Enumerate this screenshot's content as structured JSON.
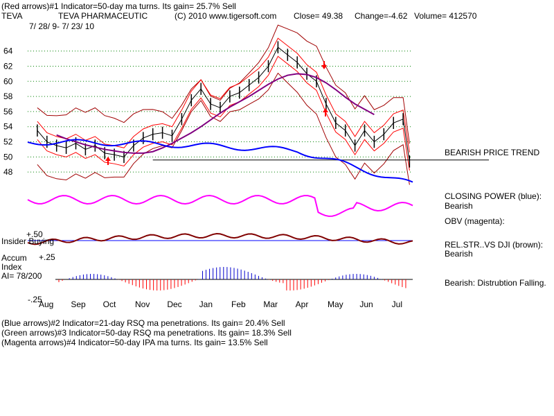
{
  "header": {
    "line1": "(Red arrows)#1 Indicator=50-day ma turns. Its gain= 25.7% Sell",
    "ticker": "TEVA",
    "company": "TEVA PHARMACEUTIC",
    "copyright": "(C) 2010 www.tigersoft.com",
    "close": "Close=  49.38",
    "change": "Change=-4.62",
    "volume": "Volume= 412570",
    "dates": "7/ 28/ 9- 7/ 23/ 10"
  },
  "right_labels": {
    "trend": "BEARISH PRICE TREND",
    "closing_power": "CLOSING POWER (blue):",
    "closing_power_val": "Bearish",
    "obv": "OBV (magenta):",
    "relstr": "REL.STR..VS DJI (brown):",
    "relstr_val": "Bearish",
    "accum": "Bearish: Distrubtion Falling."
  },
  "left_labels": {
    "insider": "Insider Buying",
    "accum": "Accum",
    "index": "Index",
    "ai": "AI= 78/200",
    "plus50": "+.50",
    "plus25": "+.25",
    "minus25": "-.25"
  },
  "footer": {
    "line1": "(Blue arrows)#2 Indicator=21-day RSQ ma penetrations. Its gain= 20.4% Sell",
    "line2": "(Green arrows)#3 Indicator=50-day RSQ ma penetrations. Its gain= 18.3% Sell",
    "line3": "(Magenta arrows)#4 Indicator=50-day IPA ma turns. Its gain= 13.5% Sell"
  },
  "colors": {
    "price": "#000000",
    "ma50": "#800080",
    "band": "#ff0000",
    "band_dark": "#a00000",
    "closing_power": "#0000ff",
    "obv": "#ff00ff",
    "relstr": "#800000",
    "accum_pos": "#0000cc",
    "accum_neg": "#ff0000",
    "grid": "#008000"
  },
  "chart_data": {
    "type": "line",
    "ylim": [
      46,
      68
    ],
    "yticks": [
      48,
      50,
      52,
      54,
      56,
      58,
      60,
      62,
      64
    ],
    "months": [
      "Aug",
      "Sep",
      "Oct",
      "Nov",
      "Dec",
      "Jan",
      "Feb",
      "Mar",
      "Apr",
      "May",
      "Jun",
      "Jul"
    ],
    "price_x": [
      0,
      0.3,
      0.6,
      0.9,
      1.2,
      1.5,
      1.8,
      2.1,
      2.4,
      2.7,
      3.0,
      3.3,
      3.6,
      3.9,
      4.2,
      4.5,
      4.8,
      5.1,
      5.4,
      5.7,
      6.0,
      6.3,
      6.6,
      6.9,
      7.2,
      7.5,
      7.8,
      8.1,
      8.4,
      8.7,
      9.0,
      9.3,
      9.6,
      9.9,
      10.2,
      10.5,
      10.8,
      11.1,
      11.4,
      11.6
    ],
    "price": [
      53.5,
      52.0,
      51.5,
      51.2,
      51.8,
      51.0,
      51.5,
      50.5,
      50.3,
      50.0,
      51.5,
      52.5,
      53.0,
      53.2,
      52.8,
      55.0,
      57.5,
      59.0,
      57.0,
      56.5,
      58.0,
      58.5,
      59.5,
      60.5,
      62.0,
      64.5,
      63.5,
      62.5,
      61.0,
      60.0,
      57.0,
      54.5,
      53.5,
      51.5,
      53.5,
      52.0,
      53.0,
      54.5,
      55.0,
      49.4
    ],
    "ma50": [
      52.9,
      52.4,
      52.0,
      51.6,
      51.3,
      51.0,
      50.8,
      50.6,
      50.5,
      50.5,
      50.7,
      51.2,
      51.8,
      52.5,
      53.2,
      54.0,
      54.9,
      55.8,
      56.6,
      57.3,
      58.0,
      58.8,
      59.6,
      60.3,
      60.8,
      61.0,
      60.9,
      60.5,
      59.8,
      58.9,
      57.9,
      57.0,
      56.3,
      55.6
    ]
  }
}
